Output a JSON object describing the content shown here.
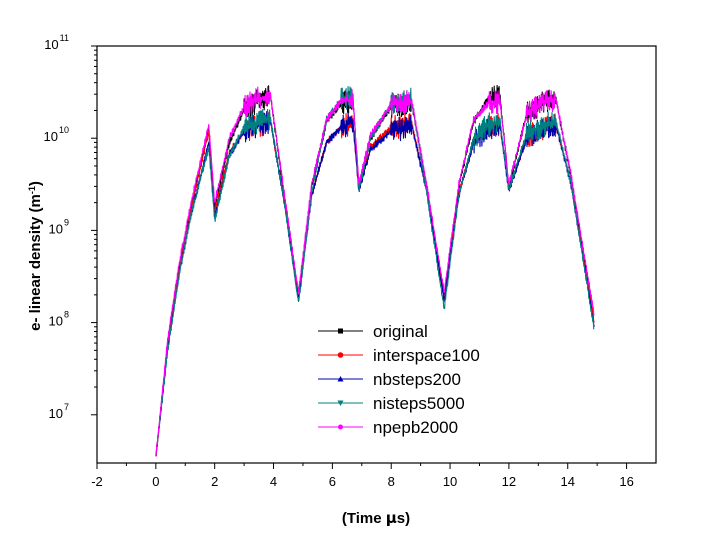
{
  "chart_data": {
    "type": "line",
    "xlabel_parts": [
      "(Time ",
      "μ",
      "s)"
    ],
    "ylabel_parts": [
      "e- linear density (m",
      "-1",
      ")"
    ],
    "xlim": [
      -2,
      17
    ],
    "ylim": [
      3000000,
      100000000000
    ],
    "yscale": "log",
    "x_ticks": [
      "-2",
      "0",
      "2",
      "4",
      "6",
      "8",
      "10",
      "12",
      "14",
      "16"
    ],
    "y_ticks": [
      {
        "base": "10",
        "exp": "7"
      },
      {
        "base": "10",
        "exp": "8"
      },
      {
        "base": "10",
        "exp": "9"
      },
      {
        "base": "10",
        "exp": "10"
      },
      {
        "base": "10",
        "exp": "11"
      }
    ],
    "grid": false,
    "legend_position": "lower-center",
    "series": [
      {
        "name": "original",
        "color": "#000000",
        "marker": "square",
        "x": [
          0,
          0.4,
          0.8,
          1.2,
          1.8,
          2.0,
          2.5,
          3.0,
          3.5,
          3.9,
          4.4,
          4.85,
          5.3,
          5.8,
          6.3,
          6.7,
          6.9,
          7.3,
          8.0,
          8.7,
          9.2,
          9.8,
          10.3,
          10.8,
          11.3,
          11.7,
          12.0,
          12.6,
          13.2,
          13.6,
          14.1,
          14.9
        ],
        "y": [
          3500000,
          60000000,
          400000000,
          1800000000,
          13000000000,
          1800000000,
          9000000000,
          20000000000,
          26000000000,
          28000000000,
          2000000000,
          200000000,
          3000000000,
          15000000000,
          24000000000,
          26000000000,
          3000000000,
          10000000000,
          22000000000,
          24000000000,
          3000000000,
          200000000,
          3000000000,
          15000000000,
          27000000000,
          28000000000,
          3000000000,
          18000000000,
          25000000000,
          26000000000,
          4000000000,
          100000000
        ]
      },
      {
        "name": "interspace100",
        "color": "#ff0000",
        "marker": "circle",
        "x": [
          0,
          0.4,
          0.8,
          1.2,
          1.8,
          2.0,
          2.5,
          3.0,
          3.5,
          3.9,
          4.4,
          4.85,
          5.3,
          5.8,
          6.3,
          6.7,
          6.9,
          7.3,
          8.0,
          8.7,
          9.2,
          9.8,
          10.3,
          10.8,
          11.3,
          11.7,
          12.0,
          12.6,
          13.2,
          13.6,
          14.1,
          14.9
        ],
        "y": [
          3500000,
          55000000,
          380000000,
          1700000000,
          12000000000,
          1600000000,
          7000000000,
          12000000000,
          14000000000,
          15000000000,
          1800000000,
          180000000,
          2500000000,
          9000000000,
          13000000000,
          15000000000,
          2800000000,
          8000000000,
          13000000000,
          14000000000,
          2800000000,
          180000000,
          2500000000,
          9000000000,
          13000000000,
          14000000000,
          2800000000,
          10000000000,
          13000000000,
          14000000000,
          3500000000,
          100000000
        ]
      },
      {
        "name": "nbsteps200",
        "color": "#0000aa",
        "marker": "triangle-up",
        "x": [
          0,
          0.4,
          0.8,
          1.2,
          1.8,
          2.0,
          2.5,
          3.0,
          3.5,
          3.9,
          4.4,
          4.85,
          5.3,
          5.8,
          6.3,
          6.7,
          6.9,
          7.3,
          8.0,
          8.7,
          9.2,
          9.8,
          10.3,
          10.8,
          11.3,
          11.7,
          12.0,
          12.6,
          13.2,
          13.6,
          14.1,
          14.9
        ],
        "y": [
          3500000,
          50000000,
          350000000,
          1500000000,
          9000000000,
          1400000000,
          6500000000,
          12000000000,
          14000000000,
          15000000000,
          1700000000,
          170000000,
          2400000000,
          9000000000,
          13000000000,
          15000000000,
          2700000000,
          7500000000,
          12000000000,
          13500000000,
          2700000000,
          170000000,
          2400000000,
          9000000000,
          12500000000,
          13500000000,
          2700000000,
          10000000000,
          13000000000,
          14000000000,
          3300000000,
          90000000
        ]
      },
      {
        "name": "nisteps5000",
        "color": "#008080",
        "marker": "triangle-down",
        "x": [
          0,
          0.4,
          0.8,
          1.2,
          1.8,
          2.0,
          2.5,
          3.0,
          3.5,
          3.9,
          4.4,
          4.85,
          5.3,
          5.8,
          6.3,
          6.7,
          6.9,
          7.3,
          8.0,
          8.7,
          9.2,
          9.8,
          10.3,
          10.8,
          11.3,
          11.7,
          12.0,
          12.6,
          13.2,
          13.6,
          14.1,
          14.9
        ],
        "y": [
          3500000,
          50000000,
          340000000,
          1500000000,
          8000000000,
          1300000000,
          6500000000,
          13000000000,
          15000000000,
          16000000000,
          1700000000,
          160000000,
          2600000000,
          16000000000,
          26000000000,
          28000000000,
          2700000000,
          10000000000,
          24000000000,
          26000000000,
          2600000000,
          140000000,
          2400000000,
          10000000000,
          14000000000,
          15000000000,
          2800000000,
          11000000000,
          14000000000,
          15000000000,
          3400000000,
          85000000
        ]
      },
      {
        "name": "npepb2000",
        "color": "#ff00ff",
        "marker": "star",
        "x": [
          0,
          0.4,
          0.8,
          1.2,
          1.8,
          2.0,
          2.5,
          3.0,
          3.5,
          3.9,
          4.4,
          4.85,
          5.3,
          5.8,
          6.3,
          6.7,
          6.9,
          7.3,
          8.0,
          8.7,
          9.2,
          9.8,
          10.3,
          10.8,
          11.3,
          11.7,
          12.0,
          12.6,
          13.2,
          13.6,
          14.1,
          14.9
        ],
        "y": [
          3500000,
          65000000,
          450000000,
          2000000000,
          14000000000,
          2000000000,
          10000000000,
          22000000000,
          27000000000,
          29000000000,
          2100000000,
          210000000,
          3200000000,
          16000000000,
          25000000000,
          27000000000,
          3200000000,
          11000000000,
          23000000000,
          25000000000,
          3200000000,
          210000000,
          3200000000,
          16000000000,
          24000000000,
          25000000000,
          3200000000,
          18000000000,
          25000000000,
          26000000000,
          4200000000,
          120000000
        ]
      }
    ]
  }
}
